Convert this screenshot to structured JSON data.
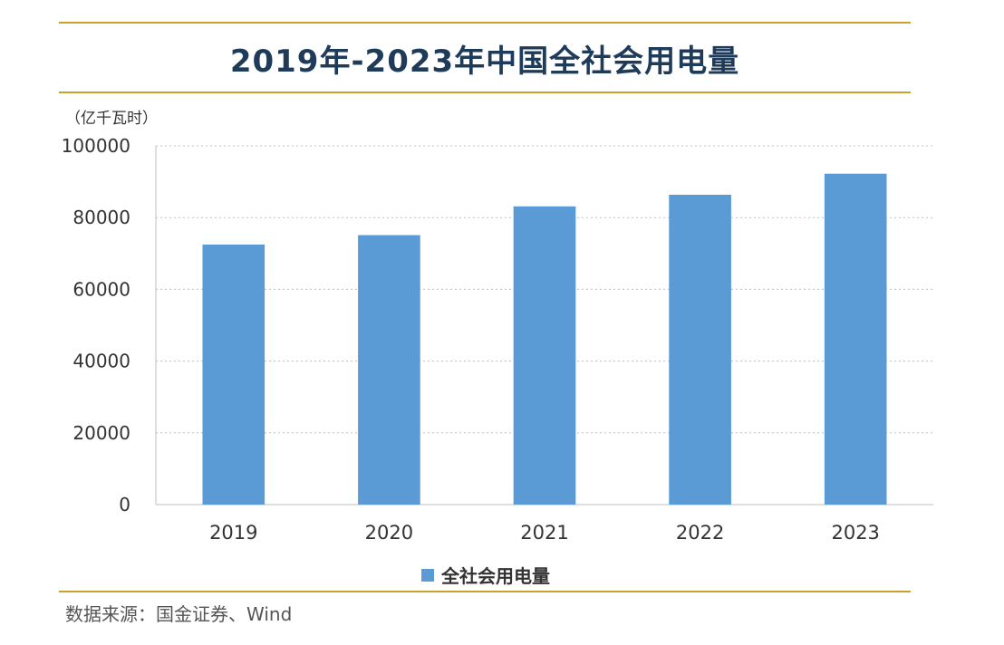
{
  "title": "2019年-2023年中国全社会用电量",
  "unit_label": "（亿千瓦时）",
  "source_text": "数据来源：国金证券、Wind",
  "colors": {
    "bar": "#5b9bd5",
    "rule": "#c9a227",
    "title": "#1f3b5a"
  },
  "chart_data": {
    "type": "bar",
    "title": "2019年-2023年中国全社会用电量",
    "ylabel": "（亿千瓦时）",
    "xlabel": "",
    "categories": [
      "2019",
      "2020",
      "2021",
      "2022",
      "2023"
    ],
    "series": [
      {
        "name": "全社会用电量",
        "values": [
          72486,
          75110,
          83128,
          86372,
          92241
        ]
      }
    ],
    "yticks": [
      "0",
      "20000",
      "40000",
      "60000",
      "80000",
      "100000"
    ],
    "ylim": [
      0,
      100000
    ],
    "grid": true,
    "legend": "bottom"
  }
}
